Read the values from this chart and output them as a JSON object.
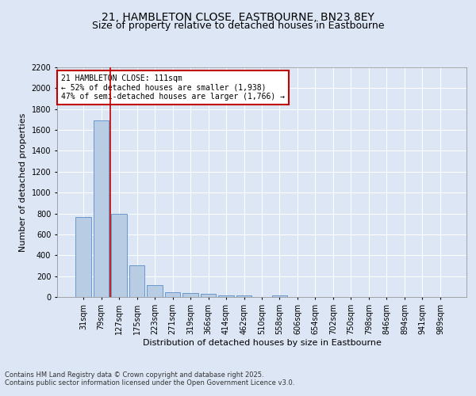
{
  "title1": "21, HAMBLETON CLOSE, EASTBOURNE, BN23 8EY",
  "title2": "Size of property relative to detached houses in Eastbourne",
  "xlabel": "Distribution of detached houses by size in Eastbourne",
  "ylabel": "Number of detached properties",
  "categories": [
    "31sqm",
    "79sqm",
    "127sqm",
    "175sqm",
    "223sqm",
    "271sqm",
    "319sqm",
    "366sqm",
    "414sqm",
    "462sqm",
    "510sqm",
    "558sqm",
    "606sqm",
    "654sqm",
    "702sqm",
    "750sqm",
    "798sqm",
    "846sqm",
    "894sqm",
    "941sqm",
    "989sqm"
  ],
  "values": [
    770,
    1690,
    800,
    300,
    115,
    42,
    35,
    27,
    18,
    15,
    0,
    18,
    0,
    0,
    0,
    0,
    0,
    0,
    0,
    0,
    0
  ],
  "bar_color": "#b8cce4",
  "bar_edge_color": "#5b8dc8",
  "ylim": [
    0,
    2200
  ],
  "yticks": [
    0,
    200,
    400,
    600,
    800,
    1000,
    1200,
    1400,
    1600,
    1800,
    2000,
    2200
  ],
  "vline_color": "#c00000",
  "annotation_text": "21 HAMBLETON CLOSE: 111sqm\n← 52% of detached houses are smaller (1,938)\n47% of semi-detached houses are larger (1,766) →",
  "annotation_box_color": "#ffffff",
  "annotation_box_edge": "#c00000",
  "background_color": "#dce6f5",
  "plot_bg_color": "#dce6f5",
  "footer1": "Contains HM Land Registry data © Crown copyright and database right 2025.",
  "footer2": "Contains public sector information licensed under the Open Government Licence v3.0.",
  "title_fontsize": 10,
  "subtitle_fontsize": 9,
  "tick_fontsize": 7,
  "ylabel_fontsize": 8,
  "xlabel_fontsize": 8,
  "annotation_fontsize": 7,
  "footer_fontsize": 6
}
